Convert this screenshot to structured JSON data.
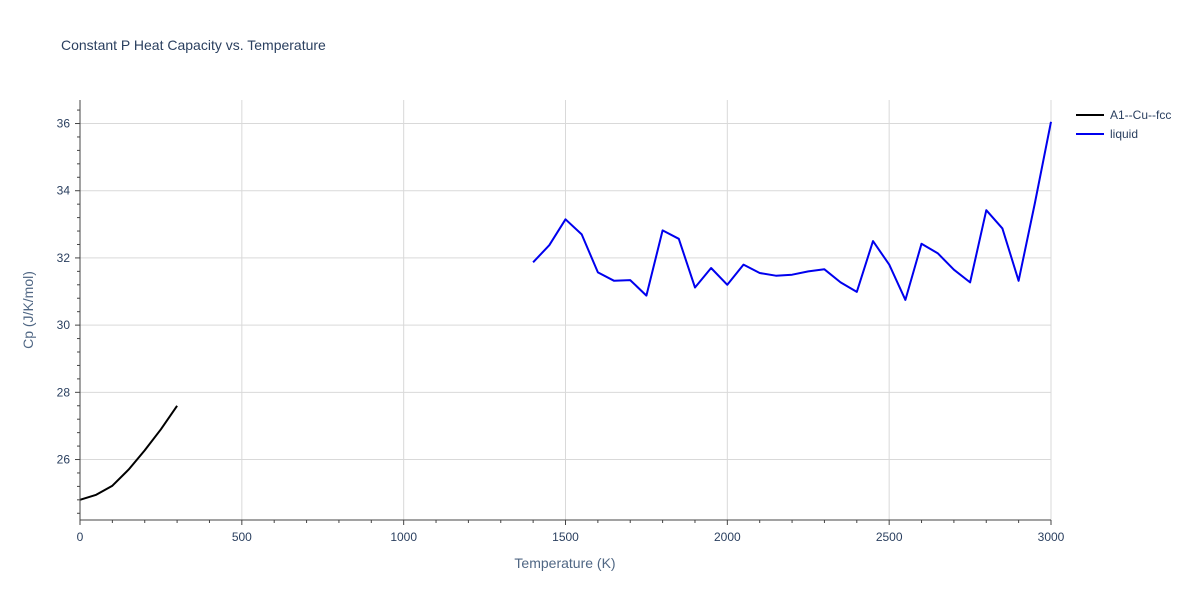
{
  "colors": {
    "background": "#ffffff",
    "text": "#2a3f5f",
    "grid": "#d9d9d9",
    "axis": "#444444"
  },
  "chart_data": {
    "type": "line",
    "title": "Constant P Heat Capacity vs. Temperature",
    "xlabel": "Temperature (K)",
    "ylabel": "Cp (J/K/mol)",
    "xlim": [
      0,
      3000
    ],
    "ylim": [
      24.2,
      36.7
    ],
    "xticks": [
      0,
      500,
      1000,
      1500,
      2000,
      2500,
      3000
    ],
    "yticks": [
      26,
      28,
      30,
      32,
      34,
      36
    ],
    "grid": true,
    "legend_position": "top-right",
    "series": [
      {
        "name": "A1--Cu--fcc",
        "color": "#000000",
        "x": [
          0,
          50,
          100,
          150,
          200,
          250,
          300
        ],
        "y": [
          24.8,
          24.95,
          25.22,
          25.7,
          26.27,
          26.9,
          27.6
        ]
      },
      {
        "name": "liquid",
        "color": "#0000ee",
        "x": [
          1400,
          1450,
          1500,
          1550,
          1600,
          1650,
          1700,
          1750,
          1800,
          1850,
          1900,
          1950,
          2000,
          2050,
          2100,
          2150,
          2200,
          2250,
          2300,
          2350,
          2400,
          2450,
          2500,
          2550,
          2600,
          2650,
          2700,
          2750,
          2800,
          2850,
          2900,
          2950,
          3000
        ],
        "y": [
          31.87,
          32.38,
          33.15,
          32.7,
          31.57,
          31.32,
          31.34,
          30.88,
          32.82,
          32.57,
          31.12,
          31.7,
          31.2,
          31.8,
          31.55,
          31.47,
          31.5,
          31.6,
          31.66,
          31.27,
          30.99,
          32.5,
          31.8,
          30.75,
          32.42,
          32.14,
          31.65,
          31.27,
          33.42,
          32.88,
          31.32,
          33.62,
          36.05
        ]
      }
    ]
  }
}
